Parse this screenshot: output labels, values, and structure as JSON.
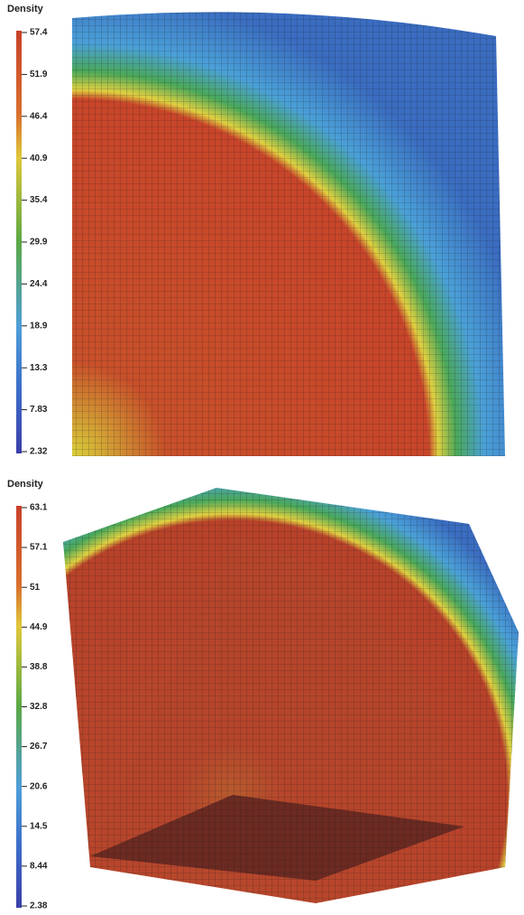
{
  "panels": [
    {
      "colorbar": {
        "title": "Density",
        "ticks": [
          "57.4",
          "51.9",
          "46.4",
          "40.9",
          "35.4",
          "29.9",
          "24.4",
          "18.9",
          "13.3",
          "7.83",
          "2.32"
        ]
      }
    },
    {
      "colorbar": {
        "title": "Density",
        "ticks": [
          "63.1",
          "57.1",
          "51",
          "44.9",
          "38.8",
          "32.8",
          "26.7",
          "20.6",
          "14.5",
          "8.44",
          "2.38"
        ]
      }
    }
  ]
}
